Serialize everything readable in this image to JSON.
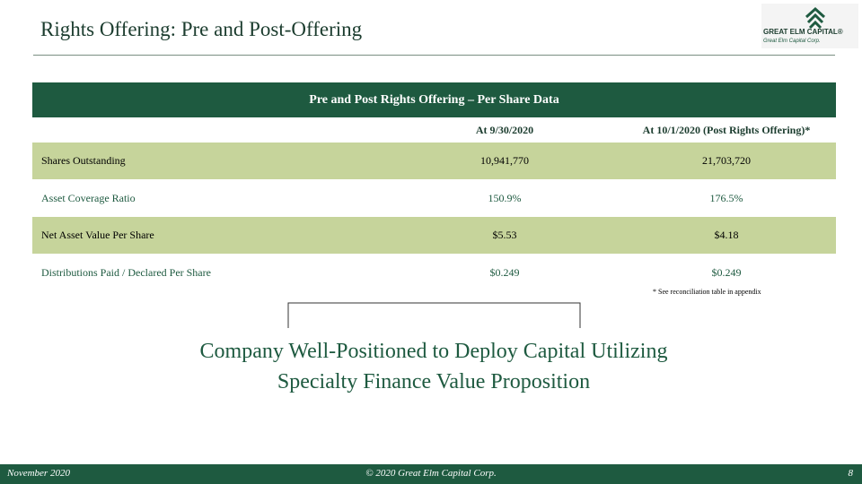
{
  "header": {
    "title": "Rights Offering: Pre and Post-Offering",
    "logo": {
      "name": "GREAT ELM CAPITAL®",
      "tagline": "Great Elm Capital Corp."
    }
  },
  "table": {
    "title": "Pre and Post Rights Offering – Per Share Data",
    "columns": [
      "At 9/30/2020",
      "At 10/1/2020 (Post Rights Offering)*"
    ],
    "rows": [
      [
        "Shares Outstanding",
        "10,941,770",
        "21,703,720"
      ],
      [
        "Asset Coverage Ratio",
        "150.9%",
        "176.5%"
      ],
      [
        "Net Asset Value Per Share",
        "$5.53",
        "$4.18"
      ],
      [
        "Distributions Paid / Declared Per Share",
        "$0.249",
        "$0.249"
      ]
    ]
  },
  "footnote": "* See reconciliation table in appendix",
  "callout": [
    "Company Well-Positioned to Deploy Capital Utilizing",
    "Specialty Finance Value Proposition"
  ],
  "footer": {
    "date": "November 2020",
    "copyright": "© 2020 Great Elm Capital Corp.",
    "page": "8"
  }
}
